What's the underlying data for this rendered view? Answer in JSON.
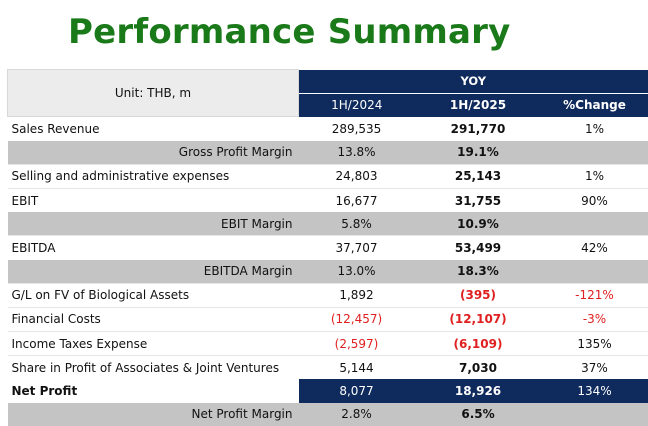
{
  "title": "Performance Summary",
  "table": {
    "unit_label": "Unit: THB, m",
    "group_header": "YOY",
    "columns": [
      "1H/2024",
      "1H/2025",
      "%Change"
    ],
    "rows": [
      {
        "label": "Sales Revenue",
        "style": "plain",
        "v2024": "289,535",
        "v2025": "291,770",
        "chg": "1%",
        "neg2024": false,
        "neg2025": false,
        "negchg": false
      },
      {
        "label": "Gross Profit Margin",
        "style": "gray",
        "v2024": "13.8%",
        "v2025": "19.1%",
        "chg": "",
        "neg2024": false,
        "neg2025": false,
        "negchg": false
      },
      {
        "label": "Selling and administrative expenses",
        "style": "plain",
        "v2024": "24,803",
        "v2025": "25,143",
        "chg": "1%",
        "neg2024": false,
        "neg2025": false,
        "negchg": false
      },
      {
        "label": "EBIT",
        "style": "plain",
        "v2024": "16,677",
        "v2025": "31,755",
        "chg": "90%",
        "neg2024": false,
        "neg2025": false,
        "negchg": false
      },
      {
        "label": "EBIT Margin",
        "style": "gray",
        "v2024": "5.8%",
        "v2025": "10.9%",
        "chg": "",
        "neg2024": false,
        "neg2025": false,
        "negchg": false
      },
      {
        "label": "EBITDA",
        "style": "plain",
        "v2024": "37,707",
        "v2025": "53,499",
        "chg": "42%",
        "neg2024": false,
        "neg2025": false,
        "negchg": false
      },
      {
        "label": "EBITDA Margin",
        "style": "gray",
        "v2024": "13.0%",
        "v2025": "18.3%",
        "chg": "",
        "neg2024": false,
        "neg2025": false,
        "negchg": false
      },
      {
        "label": "G/L on FV of Biological Assets",
        "style": "plain",
        "v2024": "1,892",
        "v2025": "(395)",
        "chg": "-121%",
        "neg2024": false,
        "neg2025": true,
        "negchg": true
      },
      {
        "label": "Financial Costs",
        "style": "plain",
        "v2024": "(12,457)",
        "v2025": "(12,107)",
        "chg": "-3%",
        "neg2024": true,
        "neg2025": true,
        "negchg": true
      },
      {
        "label": "Income Taxes Expense",
        "style": "plain",
        "v2024": "(2,597)",
        "v2025": "(6,109)",
        "chg": "135%",
        "neg2024": true,
        "neg2025": true,
        "negchg": false
      },
      {
        "label": "Share in Profit of Associates & Joint Ventures",
        "style": "plain",
        "v2024": "5,144",
        "v2025": "7,030",
        "chg": "37%",
        "neg2024": false,
        "neg2025": false,
        "negchg": false
      },
      {
        "label": "Net Profit",
        "style": "net",
        "v2024": "8,077",
        "v2025": "18,926",
        "chg": "134%",
        "neg2024": false,
        "neg2025": false,
        "negchg": false
      },
      {
        "label": "Net Profit Margin",
        "style": "gray",
        "v2024": "2.8%",
        "v2025": "6.5%",
        "chg": "",
        "neg2024": false,
        "neg2025": false,
        "negchg": false
      }
    ]
  },
  "colors": {
    "title": "#1a7a1a",
    "header_navy": "#0f2a5c",
    "margin_row_gray": "#c4c4c4",
    "negative_red": "#e02020"
  }
}
